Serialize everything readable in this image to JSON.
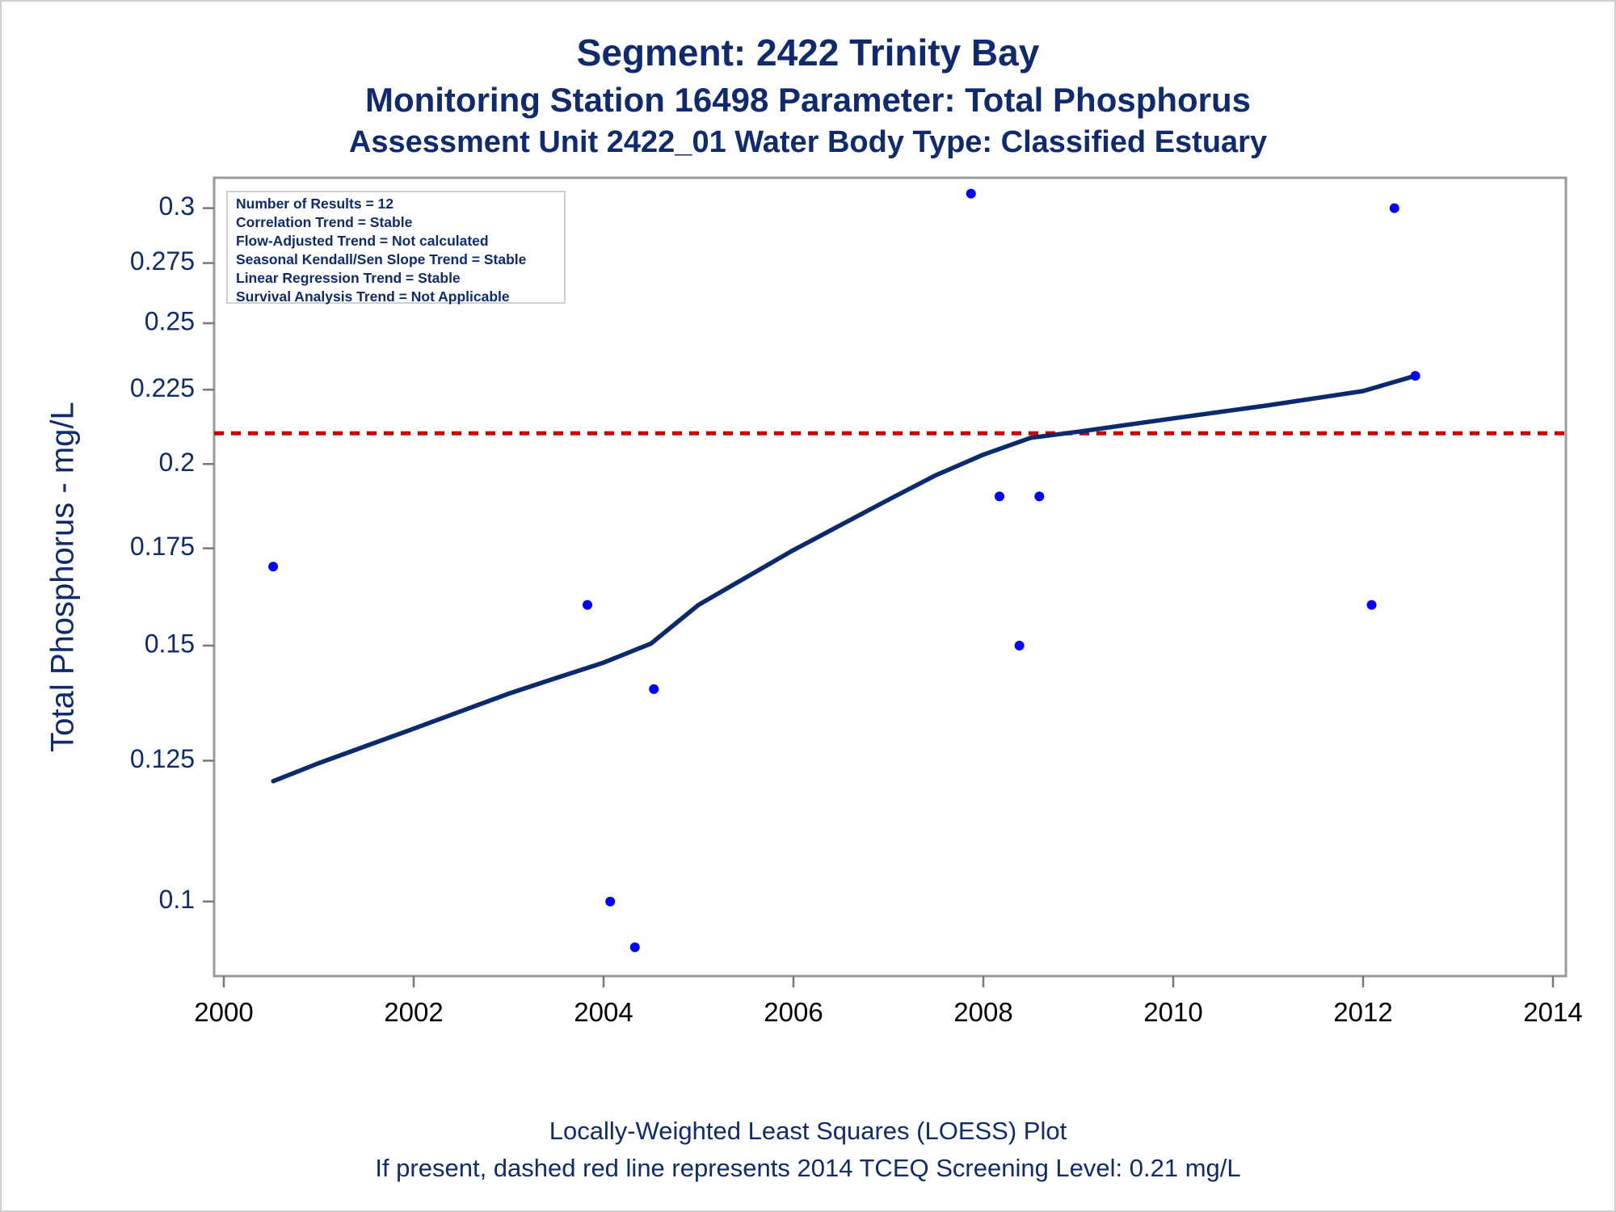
{
  "title": {
    "line1": "Segment: 2422  Trinity Bay",
    "line2": "Monitoring Station 16498 Parameter: Total Phosphorus",
    "line3": "Assessment Unit 2422_01   Water Body Type: Classified Estuary"
  },
  "stats_box": {
    "lines": [
      "Number of Results = 12",
      "Correlation Trend = Stable",
      "Flow-Adjusted Trend = Not calculated",
      "Seasonal Kendall/Sen Slope Trend = Stable",
      "Linear Regression Trend = Stable",
      "Survival Analysis Trend = Not Applicable"
    ]
  },
  "footer": {
    "line1": "Locally-Weighted Least Squares (LOESS) Plot",
    "line2": "If present, dashed red line represents 2014 TCEQ Screening Level: 0.21 mg/L"
  },
  "colors": {
    "text": "#0f2a6e",
    "points": "#0000ff",
    "loess": "#0a2a6e",
    "screening": "#cc0000",
    "frame": "#999999"
  },
  "chart_data": {
    "type": "scatter",
    "ylabel": "Total Phosphorus - mg/L",
    "xlabel": "",
    "y_scale": "log",
    "xlim": [
      2000,
      2014
    ],
    "ylim": [
      0.09,
      0.31
    ],
    "x_ticks": [
      2000,
      2002,
      2004,
      2006,
      2008,
      2010,
      2012,
      2014
    ],
    "y_ticks": [
      0.1,
      0.125,
      0.15,
      0.175,
      0.2,
      0.225,
      0.25,
      0.275,
      0.3
    ],
    "y_tick_labels": [
      "0.1",
      "0.125",
      "0.15",
      "0.175",
      "0.2",
      "0.225",
      "0.25",
      "0.275",
      "0.3"
    ],
    "points": [
      {
        "x": 2000.52,
        "y": 0.17
      },
      {
        "x": 2003.83,
        "y": 0.16
      },
      {
        "x": 2004.07,
        "y": 0.1
      },
      {
        "x": 2004.33,
        "y": 0.093
      },
      {
        "x": 2004.53,
        "y": 0.14
      },
      {
        "x": 2007.87,
        "y": 0.307
      },
      {
        "x": 2008.17,
        "y": 0.19
      },
      {
        "x": 2008.38,
        "y": 0.15
      },
      {
        "x": 2008.59,
        "y": 0.19
      },
      {
        "x": 2012.09,
        "y": 0.16
      },
      {
        "x": 2012.33,
        "y": 0.3
      },
      {
        "x": 2012.55,
        "y": 0.23
      }
    ],
    "loess_line": {
      "x": [
        2000.52,
        2001,
        2002,
        2003,
        2003.5,
        2004,
        2004.5,
        2005,
        2006,
        2007,
        2007.5,
        2008,
        2008.5,
        2009,
        2010,
        2011,
        2012,
        2012.55
      ],
      "y": [
        0.121,
        0.1245,
        0.1315,
        0.139,
        0.1425,
        0.146,
        0.1505,
        0.16,
        0.1745,
        0.189,
        0.1965,
        0.203,
        0.2085,
        0.2105,
        0.215,
        0.2195,
        0.2245,
        0.23
      ]
    },
    "screening_level": 0.21
  }
}
